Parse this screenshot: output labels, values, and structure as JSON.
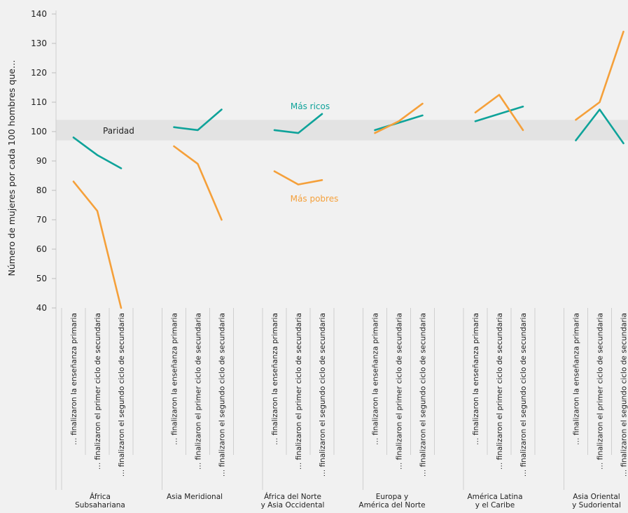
{
  "chart_data": {
    "type": "line",
    "ylabel": "Número de mujeres por cada 100 hombres que…",
    "ylim": [
      40,
      140
    ],
    "yticks": [
      40,
      50,
      60,
      70,
      80,
      90,
      100,
      110,
      120,
      130,
      140
    ],
    "parity": {
      "label": "Paridad",
      "band": [
        97,
        104
      ]
    },
    "categories": [
      "… finalizaron la enseñanza primaria",
      "… finalizaron el primer ciclo de secundaria",
      "… finalizaron el segundo ciclo de secundaria"
    ],
    "groups": [
      {
        "name_lines": [
          "África",
          "Subsahariana"
        ],
        "richest": [
          98,
          92,
          87.5
        ],
        "poorest": [
          83,
          73,
          40
        ]
      },
      {
        "name_lines": [
          "Asia Meridional"
        ],
        "richest": [
          101.5,
          100.5,
          107.5
        ],
        "poorest": [
          95,
          89,
          70
        ]
      },
      {
        "name_lines": [
          "África del Norte",
          "y Asia Occidental"
        ],
        "richest": [
          100.5,
          99.5,
          106
        ],
        "poorest": [
          86.5,
          82,
          83.5
        ]
      },
      {
        "name_lines": [
          "Europa y",
          "América del Norte"
        ],
        "richest": [
          100.5,
          103,
          105.5
        ],
        "poorest": [
          99.5,
          103.5,
          109.5
        ]
      },
      {
        "name_lines": [
          "América Latina",
          "y el Caribe"
        ],
        "richest": [
          103.5,
          106,
          108.5
        ],
        "poorest": [
          106.5,
          112.5,
          100.5
        ]
      },
      {
        "name_lines": [
          "Asia Oriental",
          "y Sudoriental"
        ],
        "richest": [
          97,
          107.5,
          96
        ],
        "poorest": [
          104,
          110,
          134
        ]
      }
    ],
    "series": [
      {
        "name": "Más ricos",
        "key": "richest",
        "color": "#0fa39a"
      },
      {
        "name": "Más pobres",
        "key": "poorest",
        "color": "#f5a03a"
      }
    ],
    "annotations": {
      "richest_label": "Más ricos",
      "poorest_label": "Más pobres"
    }
  }
}
